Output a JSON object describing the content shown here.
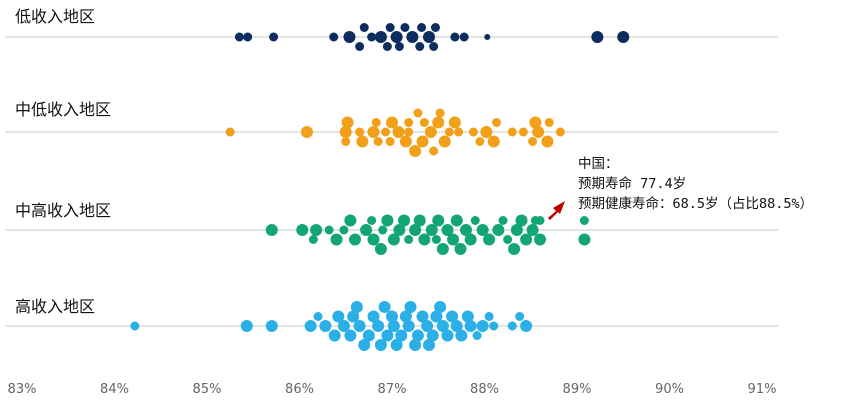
{
  "chart_data": {
    "type": "scatter",
    "xlabel": "",
    "ylabel": "",
    "xlim": [
      83,
      91
    ],
    "x_ticks": [
      "83%",
      "84%",
      "85%",
      "86%",
      "87%",
      "88%",
      "89%",
      "90%",
      "91%"
    ],
    "series": [
      {
        "name": "低收入地区",
        "color": "#0c2d5e",
        "points": [
          {
            "x": 85.35,
            "y": 0,
            "s": 1
          },
          {
            "x": 85.44,
            "y": 0,
            "s": 1
          },
          {
            "x": 85.72,
            "y": 0,
            "s": 1
          },
          {
            "x": 86.37,
            "y": 0,
            "s": 1
          },
          {
            "x": 86.54,
            "y": 0,
            "s": 2
          },
          {
            "x": 86.65,
            "y": 1,
            "s": 1
          },
          {
            "x": 86.7,
            "y": -1,
            "s": 1
          },
          {
            "x": 86.78,
            "y": 0,
            "s": 1
          },
          {
            "x": 86.88,
            "y": 0,
            "s": 2
          },
          {
            "x": 86.95,
            "y": 1,
            "s": 1
          },
          {
            "x": 86.98,
            "y": -1,
            "s": 1
          },
          {
            "x": 87.05,
            "y": 0,
            "s": 2
          },
          {
            "x": 87.08,
            "y": 1,
            "s": 1
          },
          {
            "x": 87.14,
            "y": -1,
            "s": 1
          },
          {
            "x": 87.22,
            "y": 0,
            "s": 2
          },
          {
            "x": 87.3,
            "y": 1,
            "s": 1
          },
          {
            "x": 87.32,
            "y": -1,
            "s": 1
          },
          {
            "x": 87.4,
            "y": 0,
            "s": 2
          },
          {
            "x": 87.45,
            "y": 1,
            "s": 1
          },
          {
            "x": 87.47,
            "y": -1,
            "s": 1
          },
          {
            "x": 87.68,
            "y": 0,
            "s": 1
          },
          {
            "x": 87.78,
            "y": 0,
            "s": 1
          },
          {
            "x": 88.03,
            "y": 0,
            "s": 0
          },
          {
            "x": 89.22,
            "y": 0,
            "s": 2
          },
          {
            "x": 89.5,
            "y": 0,
            "s": 2
          }
        ]
      },
      {
        "name": "中低收入地区",
        "color": "#f2a01a",
        "points": [
          {
            "x": 85.25,
            "y": 0,
            "s": 1
          },
          {
            "x": 86.08,
            "y": 0,
            "s": 2
          },
          {
            "x": 86.5,
            "y": 0,
            "s": 2
          },
          {
            "x": 86.5,
            "y": 1,
            "s": 1
          },
          {
            "x": 86.52,
            "y": -1,
            "s": 2
          },
          {
            "x": 86.65,
            "y": 0,
            "s": 1
          },
          {
            "x": 86.68,
            "y": 1,
            "s": 2
          },
          {
            "x": 86.8,
            "y": 0,
            "s": 2
          },
          {
            "x": 86.83,
            "y": -1,
            "s": 1
          },
          {
            "x": 86.85,
            "y": 1,
            "s": 1
          },
          {
            "x": 86.93,
            "y": 0,
            "s": 1
          },
          {
            "x": 86.98,
            "y": 1,
            "s": 1
          },
          {
            "x": 87.0,
            "y": -1,
            "s": 2
          },
          {
            "x": 87.07,
            "y": 0,
            "s": 2
          },
          {
            "x": 87.15,
            "y": 1,
            "s": 2
          },
          {
            "x": 87.18,
            "y": -1,
            "s": 1
          },
          {
            "x": 87.18,
            "y": 0,
            "s": 1
          },
          {
            "x": 87.25,
            "y": 2,
            "s": 2
          },
          {
            "x": 87.28,
            "y": -2,
            "s": 1
          },
          {
            "x": 87.33,
            "y": 1,
            "s": 2
          },
          {
            "x": 87.35,
            "y": -1,
            "s": 1
          },
          {
            "x": 87.42,
            "y": 0,
            "s": 2
          },
          {
            "x": 87.45,
            "y": 2,
            "s": 1
          },
          {
            "x": 87.5,
            "y": -1,
            "s": 2
          },
          {
            "x": 87.52,
            "y": -2,
            "s": 1
          },
          {
            "x": 87.57,
            "y": 1,
            "s": 2
          },
          {
            "x": 87.62,
            "y": 0,
            "s": 1
          },
          {
            "x": 87.68,
            "y": -1,
            "s": 2
          },
          {
            "x": 87.72,
            "y": 0,
            "s": 1
          },
          {
            "x": 87.88,
            "y": 0,
            "s": 1
          },
          {
            "x": 87.95,
            "y": 1,
            "s": 1
          },
          {
            "x": 88.02,
            "y": 0,
            "s": 2
          },
          {
            "x": 88.1,
            "y": 1,
            "s": 2
          },
          {
            "x": 88.13,
            "y": -1,
            "s": 1
          },
          {
            "x": 88.3,
            "y": 0,
            "s": 1
          },
          {
            "x": 88.42,
            "y": 0,
            "s": 1
          },
          {
            "x": 88.52,
            "y": 1,
            "s": 1
          },
          {
            "x": 88.55,
            "y": -1,
            "s": 2
          },
          {
            "x": 88.58,
            "y": 0,
            "s": 2
          },
          {
            "x": 88.68,
            "y": 1,
            "s": 2
          },
          {
            "x": 88.7,
            "y": -1,
            "s": 1
          },
          {
            "x": 88.82,
            "y": 0,
            "s": 1
          }
        ]
      },
      {
        "name": "中高收入地区",
        "color": "#13a674",
        "points": [
          {
            "x": 85.7,
            "y": 0,
            "s": 2
          },
          {
            "x": 86.03,
            "y": 0,
            "s": 2
          },
          {
            "x": 86.15,
            "y": 1,
            "s": 1
          },
          {
            "x": 86.18,
            "y": 0,
            "s": 2
          },
          {
            "x": 86.32,
            "y": 0,
            "s": 1
          },
          {
            "x": 86.4,
            "y": 1,
            "s": 2
          },
          {
            "x": 86.48,
            "y": 0,
            "s": 1
          },
          {
            "x": 86.55,
            "y": -1,
            "s": 2
          },
          {
            "x": 86.6,
            "y": 1,
            "s": 2
          },
          {
            "x": 86.72,
            "y": 0,
            "s": 2
          },
          {
            "x": 86.78,
            "y": -1,
            "s": 1
          },
          {
            "x": 86.8,
            "y": 1,
            "s": 2
          },
          {
            "x": 86.88,
            "y": 2,
            "s": 2
          },
          {
            "x": 86.9,
            "y": 0,
            "s": 1
          },
          {
            "x": 86.95,
            "y": -1,
            "s": 2
          },
          {
            "x": 87.02,
            "y": 1,
            "s": 2
          },
          {
            "x": 87.08,
            "y": 0,
            "s": 2
          },
          {
            "x": 87.13,
            "y": -1,
            "s": 2
          },
          {
            "x": 87.18,
            "y": 1,
            "s": 1
          },
          {
            "x": 87.25,
            "y": 0,
            "s": 2
          },
          {
            "x": 87.3,
            "y": -1,
            "s": 2
          },
          {
            "x": 87.35,
            "y": 1,
            "s": 2
          },
          {
            "x": 87.43,
            "y": 0,
            "s": 2
          },
          {
            "x": 87.48,
            "y": 1,
            "s": 1
          },
          {
            "x": 87.5,
            "y": -1,
            "s": 2
          },
          {
            "x": 87.55,
            "y": 2,
            "s": 2
          },
          {
            "x": 87.6,
            "y": 0,
            "s": 2
          },
          {
            "x": 87.66,
            "y": 1,
            "s": 2
          },
          {
            "x": 87.7,
            "y": -1,
            "s": 2
          },
          {
            "x": 87.74,
            "y": 2,
            "s": 2
          },
          {
            "x": 87.8,
            "y": 0,
            "s": 2
          },
          {
            "x": 87.85,
            "y": 1,
            "s": 2
          },
          {
            "x": 87.9,
            "y": -1,
            "s": 1
          },
          {
            "x": 87.98,
            "y": 0,
            "s": 2
          },
          {
            "x": 88.05,
            "y": 1,
            "s": 2
          },
          {
            "x": 88.15,
            "y": 0,
            "s": 2
          },
          {
            "x": 88.2,
            "y": -1,
            "s": 1
          },
          {
            "x": 88.25,
            "y": 1,
            "s": 1
          },
          {
            "x": 88.32,
            "y": 2,
            "s": 2
          },
          {
            "x": 88.35,
            "y": 0,
            "s": 2
          },
          {
            "x": 88.4,
            "y": -1,
            "s": 2
          },
          {
            "x": 88.45,
            "y": 1,
            "s": 2
          },
          {
            "x": 88.52,
            "y": 0,
            "s": 2
          },
          {
            "x": 88.55,
            "y": -1,
            "s": 1
          },
          {
            "x": 88.6,
            "y": 1,
            "s": 2
          },
          {
            "x": 88.6,
            "y": -1,
            "s": 1
          },
          {
            "x": 89.08,
            "y": 1,
            "s": 2
          },
          {
            "x": 89.08,
            "y": -1,
            "s": 1
          }
        ]
      },
      {
        "name": "高收入地区",
        "color": "#2ab0e6",
        "points": [
          {
            "x": 84.22,
            "y": 0,
            "s": 1
          },
          {
            "x": 85.43,
            "y": 0,
            "s": 2
          },
          {
            "x": 85.7,
            "y": 0,
            "s": 2
          },
          {
            "x": 86.12,
            "y": 0,
            "s": 2
          },
          {
            "x": 86.2,
            "y": -1,
            "s": 1
          },
          {
            "x": 86.28,
            "y": 0,
            "s": 2
          },
          {
            "x": 86.38,
            "y": 1,
            "s": 2
          },
          {
            "x": 86.42,
            "y": -1,
            "s": 2
          },
          {
            "x": 86.48,
            "y": 0,
            "s": 2
          },
          {
            "x": 86.55,
            "y": 1,
            "s": 2
          },
          {
            "x": 86.58,
            "y": -1,
            "s": 2
          },
          {
            "x": 86.62,
            "y": -2,
            "s": 2
          },
          {
            "x": 86.65,
            "y": 0,
            "s": 2
          },
          {
            "x": 86.7,
            "y": 2,
            "s": 2
          },
          {
            "x": 86.75,
            "y": 1,
            "s": 2
          },
          {
            "x": 86.8,
            "y": -1,
            "s": 2
          },
          {
            "x": 86.85,
            "y": 0,
            "s": 2
          },
          {
            "x": 86.88,
            "y": 2,
            "s": 2
          },
          {
            "x": 86.92,
            "y": -2,
            "s": 2
          },
          {
            "x": 86.95,
            "y": 1,
            "s": 2
          },
          {
            "x": 87.0,
            "y": -1,
            "s": 2
          },
          {
            "x": 87.02,
            "y": 0,
            "s": 2
          },
          {
            "x": 87.05,
            "y": 2,
            "s": 2
          },
          {
            "x": 87.1,
            "y": 1,
            "s": 2
          },
          {
            "x": 87.15,
            "y": -1,
            "s": 2
          },
          {
            "x": 87.18,
            "y": 0,
            "s": 2
          },
          {
            "x": 87.2,
            "y": -2,
            "s": 2
          },
          {
            "x": 87.25,
            "y": 2,
            "s": 2
          },
          {
            "x": 87.28,
            "y": 1,
            "s": 2
          },
          {
            "x": 87.33,
            "y": -1,
            "s": 2
          },
          {
            "x": 87.38,
            "y": 0,
            "s": 2
          },
          {
            "x": 87.4,
            "y": 2,
            "s": 2
          },
          {
            "x": 87.44,
            "y": 1,
            "s": 2
          },
          {
            "x": 87.48,
            "y": -1,
            "s": 2
          },
          {
            "x": 87.52,
            "y": -2,
            "s": 2
          },
          {
            "x": 87.55,
            "y": 0,
            "s": 2
          },
          {
            "x": 87.6,
            "y": 1,
            "s": 2
          },
          {
            "x": 87.65,
            "y": -1,
            "s": 2
          },
          {
            "x": 87.7,
            "y": 0,
            "s": 2
          },
          {
            "x": 87.75,
            "y": 1,
            "s": 2
          },
          {
            "x": 87.82,
            "y": -1,
            "s": 2
          },
          {
            "x": 87.85,
            "y": 0,
            "s": 2
          },
          {
            "x": 87.92,
            "y": 1,
            "s": 1
          },
          {
            "x": 87.98,
            "y": 0,
            "s": 2
          },
          {
            "x": 88.05,
            "y": -1,
            "s": 1
          },
          {
            "x": 88.1,
            "y": 0,
            "s": 1
          },
          {
            "x": 88.3,
            "y": 0,
            "s": 1
          },
          {
            "x": 88.38,
            "y": -1,
            "s": 1
          },
          {
            "x": 88.45,
            "y": 0,
            "s": 2
          }
        ]
      }
    ],
    "annotation": {
      "lines": [
        "中国：",
        "预期寿命 77.4岁",
        "预期健康寿命：68.5岁（占比88.5%）"
      ],
      "arrow_color": "#c00000"
    }
  }
}
